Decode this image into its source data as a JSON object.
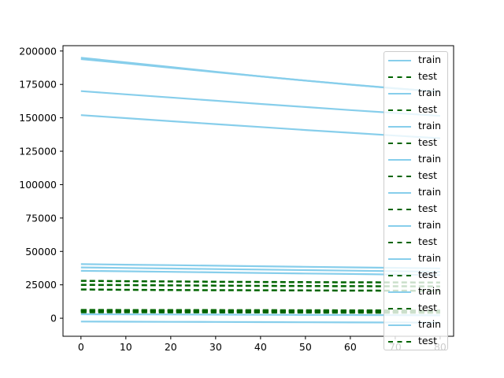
{
  "chart_data": {
    "type": "line",
    "title": "",
    "xlabel": "",
    "ylabel": "",
    "xlim": [
      -4,
      83
    ],
    "ylim": [
      -13500,
      204000
    ],
    "x_ticks": [
      0,
      10,
      20,
      30,
      40,
      50,
      60,
      70,
      80
    ],
    "x_tick_labels": [
      "0",
      "10",
      "20",
      "30",
      "40",
      "50",
      "60",
      "70",
      "80"
    ],
    "y_ticks": [
      0,
      25000,
      50000,
      75000,
      100000,
      125000,
      150000,
      175000,
      200000
    ],
    "y_tick_labels": [
      "0",
      "25000",
      "50000",
      "75000",
      "100000",
      "125000",
      "150000",
      "175000",
      "200000"
    ],
    "grid": false,
    "legend_position": "top-right",
    "colors": {
      "train": "#87ceeb",
      "test": "#006400"
    },
    "x": [
      0,
      10,
      20,
      30,
      40,
      50,
      60,
      70,
      80
    ],
    "series": [
      {
        "name": "train",
        "style": "solid",
        "values": [
          195000,
          191500,
          188000,
          184500,
          181000,
          177800,
          174800,
          172000,
          169500
        ]
      },
      {
        "name": "test",
        "style": "dashed",
        "values": [
          28000,
          27700,
          27500,
          27300,
          27100,
          27000,
          26900,
          26800,
          26700
        ]
      },
      {
        "name": "train",
        "style": "solid",
        "values": [
          194000,
          190800,
          187500,
          184200,
          181000,
          177900,
          174900,
          172100,
          169500
        ]
      },
      {
        "name": "test",
        "style": "dashed",
        "values": [
          25000,
          24800,
          24600,
          24400,
          24200,
          24100,
          24000,
          23900,
          23800
        ]
      },
      {
        "name": "train",
        "style": "solid",
        "values": [
          170000,
          167600,
          165200,
          162800,
          160400,
          158100,
          155800,
          153600,
          151500
        ]
      },
      {
        "name": "test",
        "style": "dashed",
        "values": [
          21500,
          21300,
          21100,
          21000,
          20900,
          20800,
          20700,
          20600,
          20500
        ]
      },
      {
        "name": "train",
        "style": "solid",
        "values": [
          152000,
          149800,
          147500,
          145300,
          143100,
          140900,
          138800,
          136700,
          134700
        ]
      },
      {
        "name": "test",
        "style": "dashed",
        "values": [
          6000,
          5900,
          5800,
          5700,
          5650,
          5600,
          5550,
          5500,
          5450
        ]
      },
      {
        "name": "train",
        "style": "solid",
        "values": [
          40500,
          40100,
          39700,
          39300,
          38900,
          38500,
          38100,
          37700,
          37300
        ]
      },
      {
        "name": "test",
        "style": "dashed",
        "values": [
          5000,
          4950,
          4900,
          4850,
          4800,
          4750,
          4700,
          4650,
          4600
        ]
      },
      {
        "name": "train",
        "style": "solid",
        "values": [
          38000,
          37600,
          37200,
          36800,
          36400,
          36000,
          35600,
          35200,
          34800
        ]
      },
      {
        "name": "test",
        "style": "dashed",
        "values": [
          5500,
          5450,
          5400,
          5350,
          5300,
          5250,
          5200,
          5150,
          5100
        ]
      },
      {
        "name": "train",
        "style": "solid",
        "values": [
          35500,
          35100,
          34700,
          34300,
          33900,
          33500,
          33100,
          32700,
          32300
        ]
      },
      {
        "name": "test",
        "style": "dashed",
        "values": [
          6200,
          6150,
          6100,
          6050,
          6000,
          5950,
          5900,
          5850,
          5800
        ]
      },
      {
        "name": "train",
        "style": "solid",
        "values": [
          3000,
          2900,
          2800,
          2700,
          2600,
          2500,
          2400,
          2300,
          2200
        ]
      },
      {
        "name": "test",
        "style": "dashed",
        "values": [
          4500,
          4450,
          4400,
          4350,
          4300,
          4250,
          4200,
          4150,
          4100
        ]
      },
      {
        "name": "train",
        "style": "solid",
        "values": [
          -2500,
          -2600,
          -2700,
          -2800,
          -2900,
          -3000,
          -3100,
          -3200,
          -3300
        ]
      },
      {
        "name": "test",
        "style": "dashed",
        "values": [
          5800,
          5750,
          5700,
          5650,
          5600,
          5550,
          5500,
          5450,
          5400
        ]
      }
    ]
  }
}
